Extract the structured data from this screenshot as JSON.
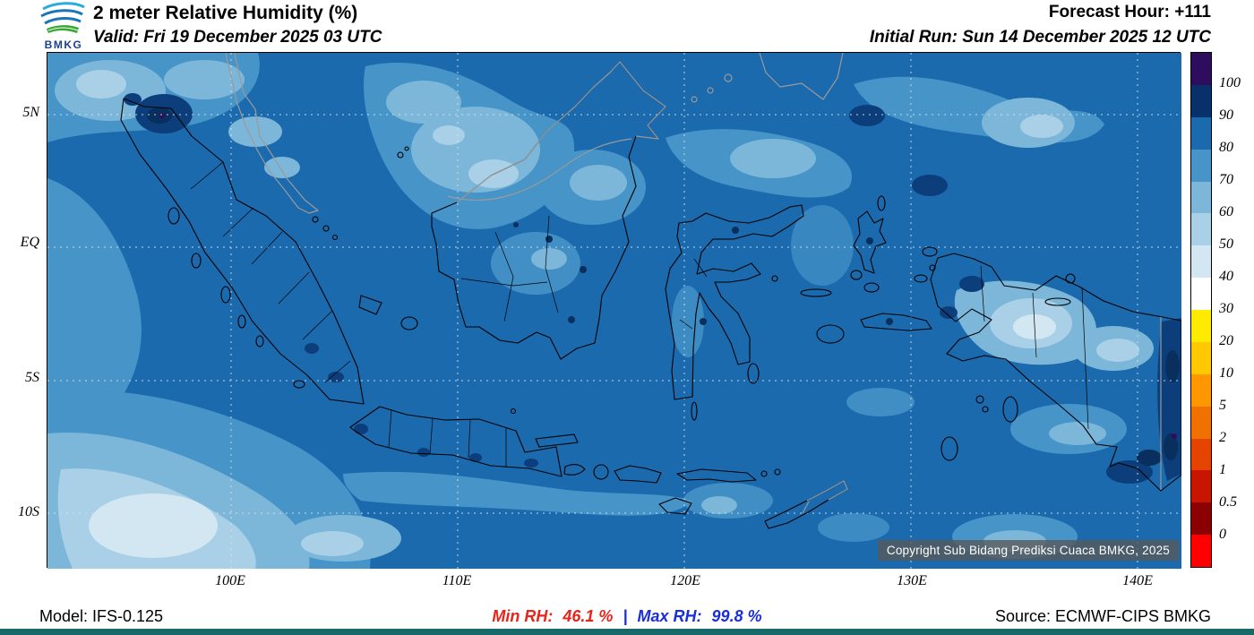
{
  "header": {
    "logo": "BMKG",
    "title": "2 meter Relative Humidity (%)",
    "valid": "Valid: Fri 19 December 2025 03 UTC",
    "forecast_hour": "Forecast Hour: +111",
    "initial_run": "Initial Run: Sun 14 December 2025 12 UTC"
  },
  "map": {
    "lat_labels": [
      "5N",
      "EQ",
      "5S",
      "10S"
    ],
    "lon_labels": [
      "100E",
      "110E",
      "120E",
      "130E",
      "140E"
    ],
    "copyright": "Copyright Sub Bidang Prediksi Cuaca BMKG, 2025"
  },
  "colorbar": {
    "labels": [
      "100",
      "90",
      "80",
      "70",
      "60",
      "50",
      "40",
      "30",
      "20",
      "10",
      "5",
      "2",
      "1",
      "0.5",
      "0"
    ],
    "colors": [
      "#2e0c5e",
      "#08316b",
      "#1b6aae",
      "#4694c8",
      "#7cb7da",
      "#a9d0e6",
      "#d3e7f3",
      "#ffffff",
      "#ffeb00",
      "#ffc800",
      "#ff9800",
      "#f07000",
      "#e54400",
      "#c81400",
      "#8b0000",
      "#ff0000"
    ]
  },
  "footer": {
    "model": "Model: IFS-0.125",
    "min_label": "Min RH:",
    "min_value": "46.1 %",
    "divider": "|",
    "max_label": "Max RH:",
    "max_value": "99.8 %",
    "source": "Source: ECMWF-CIPS BMKG"
  },
  "styles": {
    "min_rh_color": "#e8231a",
    "max_rh_color": "#1a2fd8",
    "accent_bar_color": "#17696a",
    "field_base_color": "#1b6aae"
  }
}
